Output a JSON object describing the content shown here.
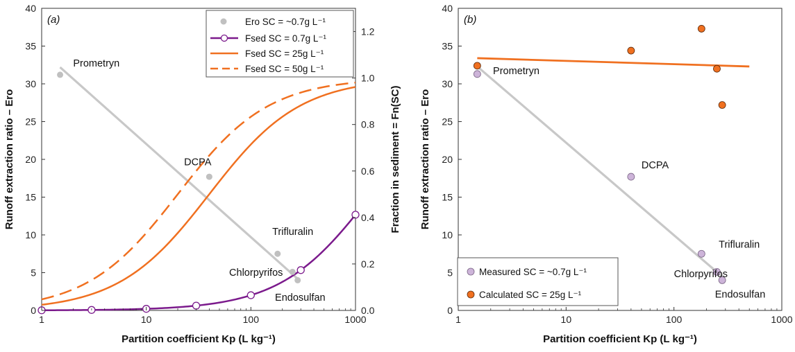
{
  "chart_data": [
    {
      "panel": "(a)",
      "type": "line",
      "panel_label": "(a)",
      "xlabel": "Partition coefficient Kp (L kg⁻¹)",
      "ylabel": "Runoff extraction ratio – Ero",
      "y2label": "Fraction in sediment = Fn(SC)",
      "xscale": "log",
      "xlim": [
        1,
        1000
      ],
      "xticks": [
        1,
        10,
        100,
        1000
      ],
      "xtick_labels": [
        "1",
        "10",
        "100",
        "1000"
      ],
      "ylim": [
        0,
        40
      ],
      "yticks": [
        0,
        5,
        10,
        15,
        20,
        25,
        30,
        35,
        40
      ],
      "ytick_labels": [
        "0",
        "5",
        "10",
        "15",
        "20",
        "25",
        "30",
        "35",
        "40"
      ],
      "y2lim": [
        0,
        1.3
      ],
      "y2ticks": [
        0,
        0.2,
        0.4,
        0.6,
        0.8,
        1.0,
        1.2
      ],
      "y2tick_labels": [
        "0.0",
        "0.2",
        "0.4",
        "0.6",
        "0.8",
        "1.0",
        "1.2"
      ],
      "legend_position": "top-right",
      "legend": [
        {
          "label": "Ero SC = ~0.7g L⁻¹",
          "style": "grey-point",
          "color": "#c0c0c0"
        },
        {
          "label": "Fsed SC = 0.7g L⁻¹",
          "style": "purple-line-open-circle",
          "color": "#7b1a8c"
        },
        {
          "label": "Fsed SC = 25g L⁻¹",
          "style": "orange-solid",
          "color": "#f07020"
        },
        {
          "label": "Fsed SC = 50g L⁻¹",
          "style": "orange-dashed",
          "color": "#f07020"
        }
      ],
      "ero_points": [
        {
          "name": "Prometryn",
          "kp": 1.5,
          "ero": 31.2
        },
        {
          "name": "DCPA",
          "kp": 40,
          "ero": 17.7
        },
        {
          "name": "Trifluralin",
          "kp": 180,
          "ero": 7.5
        },
        {
          "name": "Chlorpyrifos",
          "kp": 250,
          "ero": 5.1
        },
        {
          "name": "Endosulfan",
          "kp": 280,
          "ero": 4.0
        }
      ],
      "ero_labels": [
        {
          "text": "Prometryn",
          "kp": 2.0,
          "ero": 32.3
        },
        {
          "text": "DCPA",
          "kp": 23,
          "ero": 19.2
        },
        {
          "text": "Trifluralin",
          "kp": 160,
          "ero": 10.0
        },
        {
          "text": "Chlorpyrifos",
          "kp": 62,
          "ero": 4.6
        },
        {
          "text": "Endosulfan",
          "kp": 170,
          "ero": 1.3
        }
      ],
      "ero_fit": {
        "kp": [
          1.5,
          290
        ],
        "ero": [
          32.2,
          4.0
        ],
        "color": "#c8c8c8"
      },
      "fsed_series": [
        {
          "name": "Fsed SC = 0.7g L⁻¹",
          "sc": 0.7,
          "style": "solid",
          "color": "#7b1a8c",
          "markers_kp": [
            1,
            3,
            10,
            30,
            100,
            300,
            1000
          ]
        },
        {
          "name": "Fsed SC = 25g L⁻¹",
          "sc": 25,
          "style": "solid",
          "color": "#f07020"
        },
        {
          "name": "Fsed SC = 50g L⁻¹",
          "sc": 50,
          "style": "dashed",
          "color": "#f07020"
        }
      ]
    },
    {
      "panel": "(b)",
      "type": "scatter",
      "panel_label": "(b)",
      "xlabel": "Partition coefficient Kp (L kg⁻¹)",
      "ylabel": "Runoff extraction ratio – Ero",
      "xscale": "log",
      "xlim": [
        1,
        1000
      ],
      "xticks": [
        1,
        10,
        100,
        1000
      ],
      "xtick_labels": [
        "1",
        "10",
        "100",
        "1000"
      ],
      "ylim": [
        0,
        40
      ],
      "yticks": [
        0,
        5,
        10,
        15,
        20,
        25,
        30,
        35,
        40
      ],
      "ytick_labels": [
        "0",
        "5",
        "10",
        "15",
        "20",
        "25",
        "30",
        "35",
        "40"
      ],
      "legend_position": "bottom-left",
      "legend": [
        {
          "label": "Measured SC = ~0.7g L⁻¹",
          "style": "lilac-point",
          "color": "#cdb4d9"
        },
        {
          "label": "Calculated SC = 25g L⁻¹",
          "style": "orange-point",
          "color": "#f07020"
        }
      ],
      "measured": [
        {
          "name": "Prometryn",
          "kp": 1.5,
          "ero": 31.3
        },
        {
          "name": "DCPA",
          "kp": 40,
          "ero": 17.7
        },
        {
          "name": "Trifluralin",
          "kp": 180,
          "ero": 7.5
        },
        {
          "name": "Chlorpyrifos",
          "kp": 250,
          "ero": 5.1
        },
        {
          "name": "Endosulfan",
          "kp": 280,
          "ero": 4.0
        }
      ],
      "calculated": [
        {
          "name": "Prometryn",
          "kp": 1.5,
          "ero": 32.4
        },
        {
          "name": "DCPA",
          "kp": 40,
          "ero": 34.4
        },
        {
          "name": "Trifluralin",
          "kp": 180,
          "ero": 37.3
        },
        {
          "name": "Chlorpyrifos",
          "kp": 250,
          "ero": 32.0
        },
        {
          "name": "Endosulfan",
          "kp": 280,
          "ero": 27.2
        }
      ],
      "labels": [
        {
          "text": "Prometryn",
          "kp": 2.1,
          "ero": 31.3
        },
        {
          "text": "DCPA",
          "kp": 50,
          "ero": 18.8
        },
        {
          "text": "Trifluralin",
          "kp": 260,
          "ero": 8.3
        },
        {
          "text": "Chlorpyrifos",
          "kp": 100,
          "ero": 4.4
        },
        {
          "text": "Endosulfan",
          "kp": 240,
          "ero": 1.7
        }
      ],
      "measured_fit": {
        "kp": [
          1.5,
          290
        ],
        "ero": [
          32.3,
          4.3
        ],
        "color": "#c8c8c8"
      },
      "calculated_fit": {
        "kp": [
          1.5,
          500
        ],
        "ero": [
          33.4,
          32.3
        ],
        "color": "#f07020"
      }
    }
  ]
}
